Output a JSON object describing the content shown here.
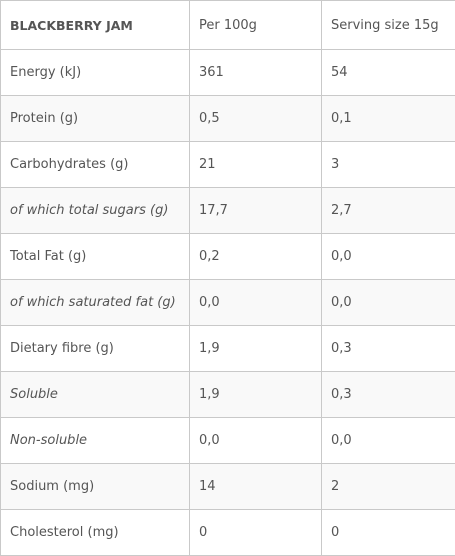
{
  "table": {
    "header": [
      "BLACKBERRY JAM",
      "Per 100g",
      "Serving size 15g"
    ],
    "rows": [
      [
        "Energy (kJ)",
        "361",
        "54"
      ],
      [
        "Protein (g)",
        "0,5",
        "0,1"
      ],
      [
        "Carbohydrates (g)",
        "21",
        "3"
      ],
      [
        "of which total sugars (g)",
        "17,7",
        "2,7"
      ],
      [
        "Total Fat (g)",
        "0,2",
        "0,0"
      ],
      [
        "of which saturated fat (g)",
        "0,0",
        "0,0"
      ],
      [
        "Dietary fibre (g)",
        "1,9",
        "0,3"
      ],
      [
        "Soluble",
        "1,9",
        "0,3"
      ],
      [
        "Non-soluble",
        "0,0",
        "0,0"
      ],
      [
        "Sodium (mg)",
        "14",
        "2"
      ],
      [
        "Cholesterol (mg)",
        "0",
        "0"
      ]
    ]
  }
}
